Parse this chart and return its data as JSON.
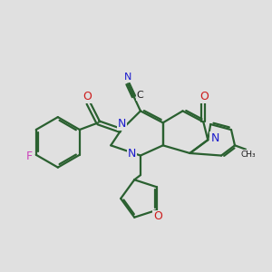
{
  "bg_color": "#e0e0e0",
  "bond_color": "#2a6030",
  "N_color": "#1a1acc",
  "O_color": "#cc1a1a",
  "F_color": "#cc44bb",
  "lw": 1.6,
  "fig_size": [
    3.0,
    3.0
  ],
  "dpi": 100,
  "xlim": [
    -2.6,
    2.8
  ],
  "ylim": [
    -2.5,
    2.2
  ]
}
